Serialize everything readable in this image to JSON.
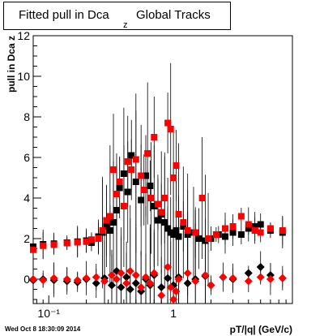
{
  "title": {
    "main": "Fitted pull in Dca",
    "subscript": "z",
    "suffix": "Global Tracks"
  },
  "footer_timestamp": "Wed Oct  8 18:30:09 2014",
  "colors": {
    "series_black": "#000000",
    "series_red": "#ff0000",
    "frame": "#000000"
  },
  "chart_data": {
    "type": "scatter",
    "title": "Fitted pull in Dca z Global Tracks",
    "xlabel": "pT/|q| (GeV/c)",
    "ylabel": "pull in Dca z",
    "xscale": "log",
    "xlim": [
      0.075,
      9
    ],
    "ylim": [
      -1.2,
      12
    ],
    "x_ticks": [
      {
        "v": 0.1,
        "label": "10⁻¹"
      },
      {
        "v": 1,
        "label": "1"
      }
    ],
    "y_ticks": [
      0,
      2,
      4,
      6,
      8,
      10,
      12
    ],
    "series": [
      {
        "name": "",
        "color": "#000000",
        "marker": "square",
        "points": [
          [
            0.075,
            1.6
          ],
          [
            0.09,
            1.72
          ],
          [
            0.11,
            1.75
          ],
          [
            0.14,
            1.8
          ],
          [
            0.17,
            1.85
          ],
          [
            0.2,
            1.9
          ],
          [
            0.22,
            1.8
          ],
          [
            0.25,
            2.1
          ],
          [
            0.27,
            2.3
          ],
          [
            0.29,
            2.6
          ],
          [
            0.31,
            2.4
          ],
          [
            0.33,
            2.8
          ],
          [
            0.35,
            3.4
          ],
          [
            0.37,
            4.5
          ],
          [
            0.4,
            5.2
          ],
          [
            0.43,
            4.3
          ],
          [
            0.46,
            6.1
          ],
          [
            0.5,
            4.8
          ],
          [
            0.55,
            3.9
          ],
          [
            0.6,
            5.1
          ],
          [
            0.65,
            4.6
          ],
          [
            0.7,
            3.6
          ],
          [
            0.75,
            2.9
          ],
          [
            0.8,
            3.2
          ],
          [
            0.85,
            2.8
          ],
          [
            0.9,
            2.5
          ],
          [
            0.95,
            2.3
          ],
          [
            1.0,
            2.2
          ],
          [
            1.05,
            2.4
          ],
          [
            1.1,
            2.1
          ],
          [
            1.2,
            2.6
          ],
          [
            1.3,
            2.2
          ],
          [
            1.45,
            2.3
          ],
          [
            1.6,
            2.0
          ],
          [
            1.8,
            1.9
          ],
          [
            2.0,
            2.0
          ],
          [
            2.3,
            2.2
          ],
          [
            2.6,
            2.1
          ],
          [
            3.0,
            2.3
          ],
          [
            3.5,
            2.2
          ],
          [
            4.0,
            2.5
          ],
          [
            4.5,
            2.6
          ],
          [
            5.0,
            2.7
          ],
          [
            6.0,
            2.4
          ],
          [
            7.5,
            2.3
          ]
        ],
        "points_near_zero": [
          [
            0.075,
            -0.05
          ],
          [
            0.09,
            0.0
          ],
          [
            0.11,
            -0.05
          ],
          [
            0.14,
            -0.1
          ],
          [
            0.17,
            -0.15
          ],
          [
            0.2,
            0.0
          ],
          [
            0.24,
            -0.2
          ],
          [
            0.28,
            0.05
          ],
          [
            0.32,
            -0.3
          ],
          [
            0.35,
            0.4
          ],
          [
            0.38,
            -0.4
          ],
          [
            0.42,
            0.1
          ],
          [
            0.45,
            -0.5
          ],
          [
            0.5,
            -0.2
          ],
          [
            0.55,
            -0.6
          ],
          [
            0.6,
            0.0
          ],
          [
            0.65,
            -0.3
          ],
          [
            0.7,
            0.2
          ],
          [
            0.8,
            -0.4
          ],
          [
            0.9,
            0.05
          ],
          [
            1.0,
            -0.3
          ],
          [
            1.1,
            0.1
          ],
          [
            1.3,
            -0.2
          ],
          [
            1.5,
            0.0
          ],
          [
            1.8,
            0.15
          ],
          [
            2.0,
            -0.3
          ],
          [
            2.5,
            0.1
          ],
          [
            3.0,
            0.0
          ],
          [
            4.0,
            0.3
          ],
          [
            5.0,
            0.6
          ],
          [
            6.0,
            0.2
          ],
          [
            7.5,
            0.05
          ]
        ]
      },
      {
        "name": "",
        "color": "#ff0000",
        "marker": "square",
        "points": [
          [
            0.075,
            1.45
          ],
          [
            0.09,
            1.65
          ],
          [
            0.11,
            1.7
          ],
          [
            0.14,
            1.78
          ],
          [
            0.17,
            1.82
          ],
          [
            0.2,
            1.85
          ],
          [
            0.22,
            1.95
          ],
          [
            0.25,
            2.0
          ],
          [
            0.27,
            2.4
          ],
          [
            0.29,
            2.9
          ],
          [
            0.31,
            3.1
          ],
          [
            0.33,
            5.4
          ],
          [
            0.35,
            4.2
          ],
          [
            0.37,
            4.8
          ],
          [
            0.4,
            3.6
          ],
          [
            0.43,
            5.8
          ],
          [
            0.46,
            5.4
          ],
          [
            0.5,
            5.9
          ],
          [
            0.55,
            5.1
          ],
          [
            0.58,
            4.4
          ],
          [
            0.62,
            6.2
          ],
          [
            0.66,
            4.0
          ],
          [
            0.7,
            7.0
          ],
          [
            0.75,
            3.7
          ],
          [
            0.8,
            3.3
          ],
          [
            0.85,
            4.0
          ],
          [
            0.9,
            7.7
          ],
          [
            0.95,
            7.4
          ],
          [
            1.0,
            5.0
          ],
          [
            1.05,
            5.6
          ],
          [
            1.1,
            3.2
          ],
          [
            1.2,
            2.8
          ],
          [
            1.3,
            2.4
          ],
          [
            1.5,
            2.3
          ],
          [
            1.7,
            4.0
          ],
          [
            1.9,
            2.0
          ],
          [
            2.2,
            2.2
          ],
          [
            2.6,
            2.5
          ],
          [
            3.0,
            2.6
          ],
          [
            3.5,
            3.1
          ],
          [
            4.0,
            2.7
          ],
          [
            4.5,
            2.4
          ],
          [
            5.0,
            2.3
          ],
          [
            6.0,
            2.5
          ],
          [
            7.5,
            2.4
          ]
        ],
        "points_near_zero": [
          [
            0.075,
            0.0
          ],
          [
            0.09,
            -0.05
          ],
          [
            0.11,
            0.05
          ],
          [
            0.14,
            0.0
          ],
          [
            0.17,
            -0.05
          ],
          [
            0.2,
            0.05
          ],
          [
            0.24,
            0.1
          ],
          [
            0.28,
            -0.1
          ],
          [
            0.32,
            0.2
          ],
          [
            0.35,
            0.0
          ],
          [
            0.38,
            0.3
          ],
          [
            0.42,
            -0.2
          ],
          [
            0.45,
            0.4
          ],
          [
            0.5,
            0.2
          ],
          [
            0.55,
            -0.4
          ],
          [
            0.6,
            0.1
          ],
          [
            0.65,
            -0.2
          ],
          [
            0.7,
            0.3
          ],
          [
            0.8,
            -0.8
          ],
          [
            0.9,
            0.6
          ],
          [
            0.95,
            -0.4
          ],
          [
            1.0,
            -1.0
          ],
          [
            1.05,
            -0.6
          ],
          [
            1.1,
            0.0
          ],
          [
            1.3,
            0.3
          ],
          [
            1.5,
            -0.1
          ],
          [
            1.8,
            0.2
          ],
          [
            2.0,
            -0.3
          ],
          [
            2.5,
            0.1
          ],
          [
            3.0,
            0.05
          ],
          [
            4.0,
            -0.1
          ],
          [
            5.0,
            0.1
          ],
          [
            6.0,
            0.0
          ],
          [
            7.5,
            0.05
          ]
        ]
      }
    ]
  }
}
